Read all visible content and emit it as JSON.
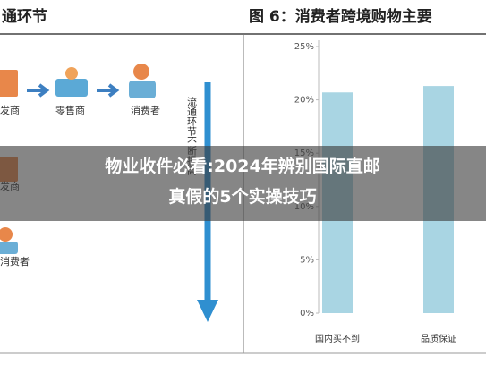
{
  "left_panel": {
    "title": "通环节",
    "labels": [
      "发商",
      "零售商",
      "消费者",
      "发商",
      "消费者"
    ],
    "arrow_text": "流通环节不断提高"
  },
  "chart_data": {
    "type": "bar",
    "title": "图 6：消费者跨境购物主要",
    "categories": [
      "国内买不到",
      "品质保证"
    ],
    "values": [
      20.7,
      21.3
    ],
    "color": "#a9d5e3",
    "ylim": [
      0,
      25
    ],
    "yticks": [
      {
        "value": 0,
        "label": "0%"
      },
      {
        "value": 5,
        "label": "5%"
      },
      {
        "value": 10,
        "label": "10%"
      },
      {
        "value": 15,
        "label": "15%"
      },
      {
        "value": 20,
        "label": "20%"
      },
      {
        "value": 25,
        "label": "25%"
      }
    ]
  },
  "overlay": {
    "lines": [
      "物业收件必看:2024年辨别国际直邮",
      "真假的5个实操技巧"
    ]
  }
}
